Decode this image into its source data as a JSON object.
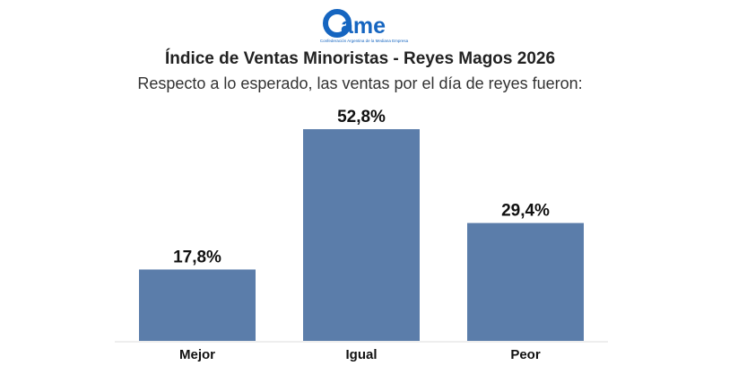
{
  "logo": {
    "text": "came",
    "tagline": "Confederación Argentina de la Mediana Empresa",
    "color": "#1565c0"
  },
  "chart_data": {
    "type": "bar",
    "title": "Índice de Ventas Minoristas - Reyes Magos 2026",
    "subtitle": "Respecto a lo esperado, las ventas por el día de reyes fueron:",
    "categories": [
      "Mejor",
      "Igual",
      "Peor"
    ],
    "values": [
      17.8,
      52.8,
      29.4
    ],
    "data_labels": [
      "17,8%",
      "52,8%",
      "29,4%"
    ],
    "bar_color": "#5b7daa",
    "ylim": [
      0,
      52.8
    ],
    "grid": false
  }
}
